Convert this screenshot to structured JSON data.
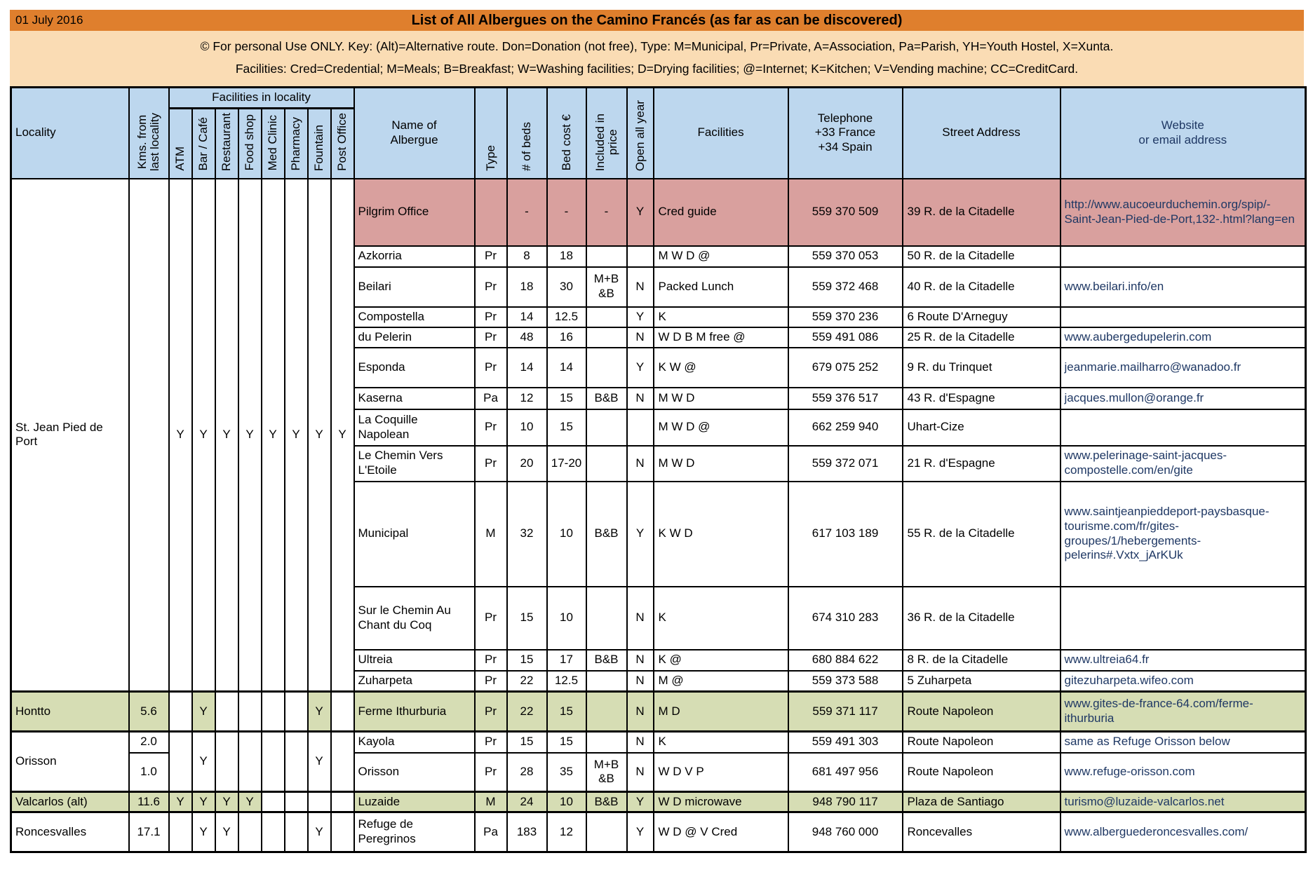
{
  "header_bar": {
    "date": "01 July 2016",
    "title": "List of All Albergues on the Camino Francés (as far as can be discovered)"
  },
  "key": {
    "line1": "© For personal Use ONLY.  Key: (Alt)=Alternative route. Don=Donation (not free), Type: M=Municipal, Pr=Private, A=Association, Pa=Parish, YH=Youth Hostel, X=Xunta.",
    "line2": "Facilities: Cred=Credential; M=Meals; B=Breakfast; W=Washing facilities; D=Drying facilities; @=Internet; K=Kitchen; V=Vending machine; CC=CreditCard."
  },
  "columns": {
    "locality": "Locality",
    "kms": "Kms. from\nlast locality",
    "facilities_group": "Facilities in locality",
    "name": "Name of\nAlbergue",
    "type": "Type",
    "beds": "# of beds",
    "cost": "Bed cost €",
    "included": "Included in\nprice",
    "open": "Open all year",
    "facilities": "Facilities",
    "phone": "Telephone\n+33 France\n+34 Spain",
    "street": "Street Address",
    "website": "Website\nor email address"
  },
  "facility_columns": [
    "ATM",
    "Bar / Café",
    "Restaurant",
    "Food shop",
    "Med Clinic",
    "Pharmacy",
    "Fountain",
    "Post Office"
  ],
  "facility_keys": [
    "atm",
    "bar-cafe",
    "restaurant",
    "food-shop",
    "med-clinic",
    "pharmacy",
    "fountain",
    "post-office"
  ],
  "colors": {
    "banner_orange": "#DF7F2D",
    "key_peach": "#FADCB4",
    "header_blue": "#BDD7EE",
    "highlight_pink": "#D9A09E",
    "highlight_green": "#D6DDB4",
    "link_navy": "#1F3864"
  },
  "localities": [
    {
      "name": "St. Jean Pied de Port",
      "kms": "",
      "highlight": null,
      "facility_flags": [
        "Y",
        "Y",
        "Y",
        "Y",
        "Y",
        "Y",
        "Y",
        "Y"
      ],
      "albergues": [
        {
          "name": "Pilgrim Office",
          "type": "",
          "beds": "-",
          "cost": "-",
          "included": "-",
          "open": "Y",
          "facilities": "Cred guide",
          "phone": "559 370 509",
          "street": "39 R. de la Citadelle",
          "website": "http://www.aucoeurduchemin.org/spip/-Saint-Jean-Pied-de-Port,132-.html?lang=en",
          "highlight": "pink"
        },
        {
          "name": "Azkorria",
          "type": "Pr",
          "beds": "8",
          "cost": "18",
          "included": "",
          "open": "",
          "facilities": "M W D @",
          "phone": "559 370 053",
          "street": "50 R. de la Citadelle",
          "website": ""
        },
        {
          "name": "Beilari",
          "type": "Pr",
          "beds": "18",
          "cost": "30",
          "included": "M+B &B",
          "open": "N",
          "facilities": "Packed Lunch",
          "phone": "559 372 468",
          "street": "40 R. de la Citadelle",
          "website": "www.beilari.info/en"
        },
        {
          "name": "Compostella",
          "type": "Pr",
          "beds": "14",
          "cost": "12.5",
          "included": "",
          "open": "Y",
          "facilities": "K",
          "phone": "559 370 236",
          "street": "6 Route D'Arneguy",
          "website": ""
        },
        {
          "name": "du Pelerin",
          "type": "Pr",
          "beds": "48",
          "cost": "16",
          "included": "",
          "open": "N",
          "facilities": "W D B M free @",
          "phone": "559 491 086",
          "street": "25 R. de la Citadelle",
          "website": "www.aubergedupelerin.com"
        },
        {
          "name": "Esponda",
          "type": "Pr",
          "beds": "14",
          "cost": "14",
          "included": "",
          "open": "Y",
          "facilities": "K W @",
          "phone": "679 075 252",
          "street": "9 R. du Trinquet",
          "website": "jeanmarie.mailharro@wanadoo.fr"
        },
        {
          "name": "Kaserna",
          "type": "Pa",
          "beds": "12",
          "cost": "15",
          "included": "B&B",
          "open": "N",
          "facilities": "M W D",
          "phone": "559 376 517",
          "street": "43 R. d'Espagne",
          "website": "jacques.mullon@orange.fr"
        },
        {
          "name": "La Coquille Napolean",
          "type": "Pr",
          "beds": "10",
          "cost": "15",
          "included": "",
          "open": "",
          "facilities": "M W D @",
          "phone": "662 259 940",
          "street": "Uhart-Cize",
          "website": ""
        },
        {
          "name": "Le Chemin Vers L'Etoile",
          "type": "Pr",
          "beds": "20",
          "cost": "17-20",
          "included": "",
          "open": "N",
          "facilities": "M W D",
          "phone": "559 372 071",
          "street": "21 R. d'Espagne",
          "website": "www.pelerinage-saint-jacques-compostelle.com/en/gite"
        },
        {
          "name": "Municipal",
          "type": "M",
          "beds": "32",
          "cost": "10",
          "included": "B&B",
          "open": "Y",
          "facilities": "K W D",
          "phone": "617 103 189",
          "street": "55 R. de la Citadelle",
          "website": "www.saintjeanpieddeport-paysbasque-tourisme.com/fr/gites-groupes/1/hebergements-pelerins#.Vxtx_jArKUk"
        },
        {
          "name": "Sur le Chemin Au Chant du Coq",
          "type": "Pr",
          "beds": "15",
          "cost": "10",
          "included": "",
          "open": "N",
          "facilities": "K",
          "phone": "674 310 283",
          "street": "36 R. de la Citadelle",
          "website": ""
        },
        {
          "name": "Ultreia",
          "type": "Pr",
          "beds": "15",
          "cost": "17",
          "included": "B&B",
          "open": "N",
          "facilities": "K @",
          "phone": "680 884 622",
          "street": "8 R. de la Citadelle",
          "website": "www.ultreia64.fr"
        },
        {
          "name": "Zuharpeta",
          "type": "Pr",
          "beds": "22",
          "cost": "12.5",
          "included": "",
          "open": "N",
          "facilities": "M @",
          "phone": "559 373 588",
          "street": "5 Zuharpeta",
          "website": "gitezuharpeta.wifeo.com"
        }
      ]
    },
    {
      "name": "Hontto",
      "kms": "5.6",
      "highlight": "green",
      "facility_flags": [
        "",
        "Y",
        "",
        "",
        "",
        "",
        "Y",
        ""
      ],
      "albergues": [
        {
          "name": "Ferme Ithurburia",
          "type": "Pr",
          "beds": "22",
          "cost": "15",
          "included": "",
          "open": "N",
          "facilities": "M D",
          "phone": "559 371 117",
          "street": "Route Napoleon",
          "website": "www.gites-de-france-64.com/ferme-ithurburia"
        }
      ]
    },
    {
      "name": "Orisson",
      "kms_per_row": true,
      "highlight": null,
      "facility_flags": [
        "",
        "Y",
        "",
        "",
        "",
        "",
        "Y",
        ""
      ],
      "albergues": [
        {
          "kms": "2.0",
          "name": "Kayola",
          "type": "Pr",
          "beds": "15",
          "cost": "15",
          "included": "",
          "open": "N",
          "facilities": "K",
          "phone": "559 491 303",
          "street": "Route Napoleon",
          "website": "same as Refuge Orisson below"
        },
        {
          "kms": "1.0",
          "name": "Orisson",
          "type": "Pr",
          "beds": "28",
          "cost": "35",
          "included": "M+B &B",
          "open": "N",
          "facilities": "W D V P",
          "phone": "681 497 956",
          "street": "Route Napoleon",
          "website": "www.refuge-orisson.com"
        }
      ]
    },
    {
      "name": "Valcarlos (alt)",
      "kms": "11.6",
      "highlight": "green",
      "facility_flags": [
        "Y",
        "Y",
        "Y",
        "Y",
        "",
        "",
        "",
        ""
      ],
      "albergues": [
        {
          "name": "Luzaide",
          "type": "M",
          "beds": "24",
          "cost": "10",
          "included": "B&B",
          "open": "Y",
          "facilities": "W D microwave",
          "phone": "948 790 117",
          "street": "Plaza de Santiago",
          "website": "turismo@luzaide-valcarlos.net"
        }
      ]
    },
    {
      "name": "Roncesvalles",
      "kms": "17.1",
      "highlight": null,
      "facility_flags": [
        "",
        "Y",
        "Y",
        "",
        "",
        "",
        "Y",
        ""
      ],
      "albergues": [
        {
          "name": "Refuge de Peregrinos",
          "type": "Pa",
          "beds": "183",
          "cost": "12",
          "included": "",
          "open": "Y",
          "facilities": "W D @ V Cred",
          "phone": "948 760 000",
          "street": "Roncevalles",
          "website": "www.alberguederoncesvalles.com/"
        }
      ]
    }
  ]
}
